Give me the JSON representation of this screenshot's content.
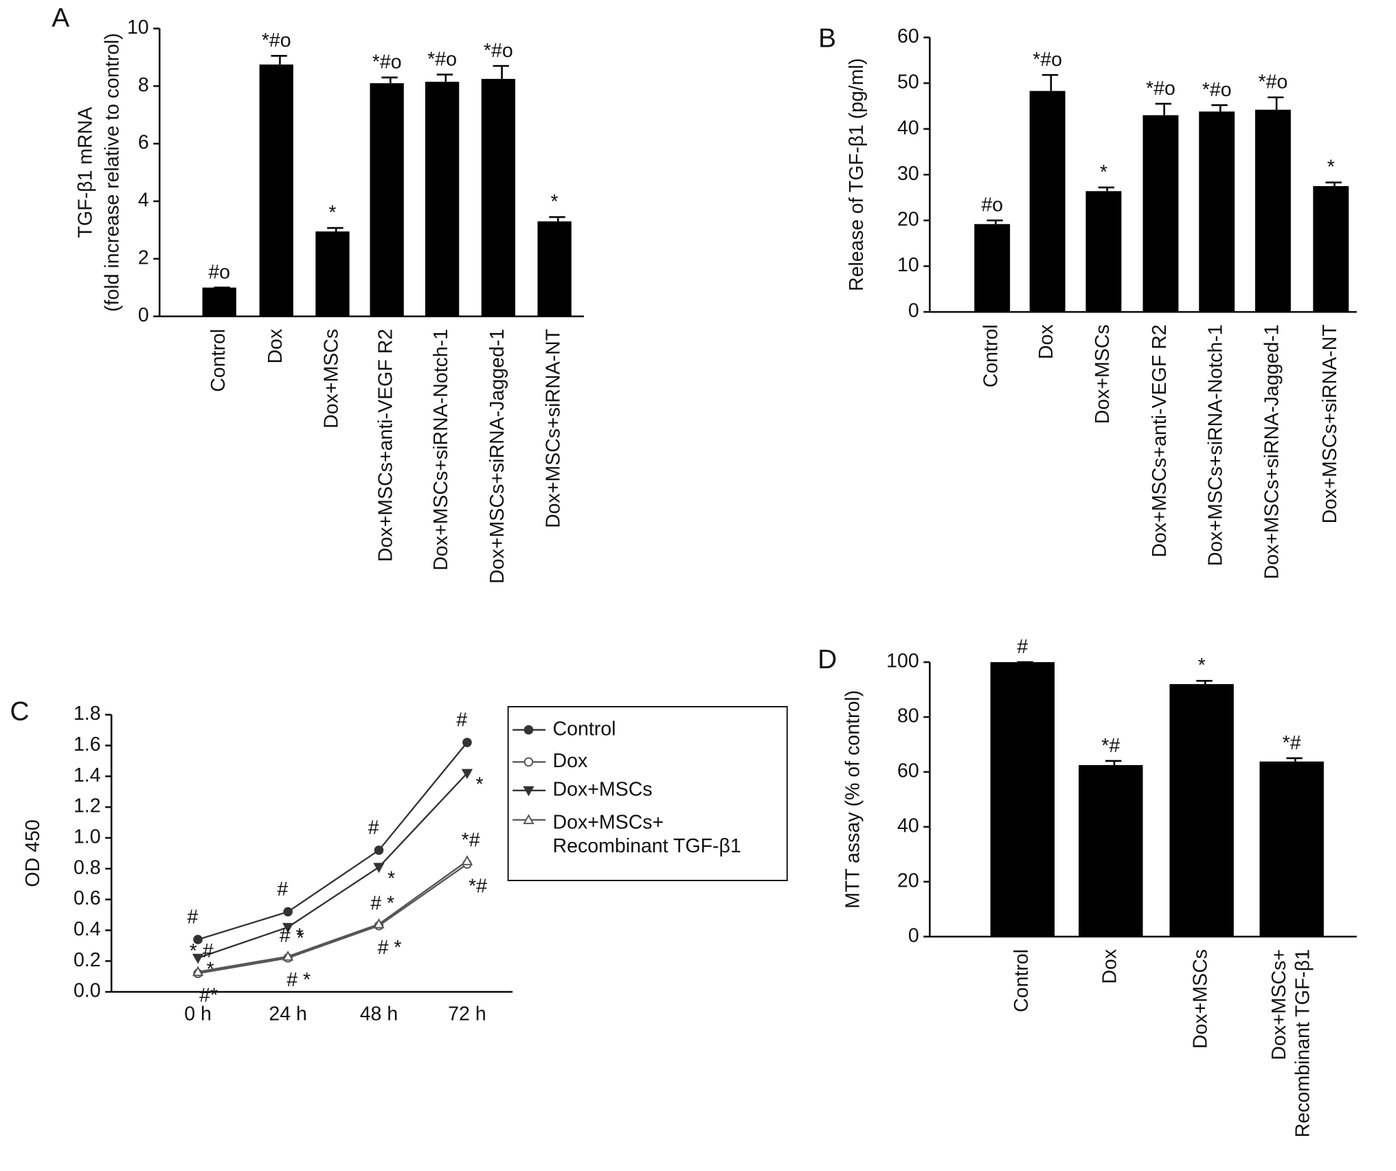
{
  "chart_data": [
    {
      "type": "bar",
      "panel_label": "A",
      "ylabel": [
        "TGF-β1 mRNA",
        "(fold increase relative to control)"
      ],
      "categories": [
        "Control",
        "Dox",
        "Dox+MSCs",
        "Dox+MSCs+anti-VEGF R2",
        "Dox+MSCs+siRNA-Notch-1",
        "Dox+MSCs+siRNA-Jagged-1",
        "Dox+MSCs+siRNA-NT"
      ],
      "values": [
        1,
        8.75,
        2.95,
        8.1,
        8.15,
        8.25,
        3.3
      ],
      "errors": [
        0,
        0.3,
        0.12,
        0.2,
        0.25,
        0.45,
        0.15
      ],
      "annotations": [
        "#o",
        "*#o",
        "*",
        "*#o",
        "*#o",
        "*#o",
        "*"
      ],
      "color": "#000000",
      "ylim": [
        0,
        10
      ],
      "yticks": [
        0,
        2,
        4,
        6,
        8,
        10
      ]
    },
    {
      "type": "bar",
      "panel_label": "B",
      "ylabel": [
        "Release of TGF-β1 (pg/ml)"
      ],
      "categories": [
        "Control",
        "Dox",
        "Dox+MSCs",
        "Dox+MSCs+anti-VEGF R2",
        "Dox+MSCs+siRNA-Notch-1",
        "Dox+MSCs+siRNA-Jagged-1",
        "Dox+MSCs+siRNA-NT"
      ],
      "values": [
        19.2,
        48.3,
        26.4,
        43,
        43.8,
        44.2,
        27.5
      ],
      "errors": [
        0.8,
        3.5,
        0.8,
        2.5,
        1.4,
        2.7,
        0.8
      ],
      "annotations": [
        "#o",
        "*#o",
        "*",
        "*#o",
        "*#o",
        "*#o",
        "*"
      ],
      "color": "#000000",
      "ylim": [
        0,
        60
      ],
      "yticks": [
        0,
        10,
        20,
        30,
        40,
        50,
        60
      ]
    },
    {
      "type": "line",
      "panel_label": "C",
      "ylabel": [
        "OD 450"
      ],
      "categories": [
        "0 h",
        "24 h",
        "48 h",
        "72 h"
      ],
      "series": [
        {
          "name": "Control",
          "color": "#333333",
          "marker": "circle-filled",
          "values": [
            0.34,
            0.52,
            0.92,
            1.62
          ],
          "annotations": [
            "#",
            "#",
            "#",
            "#"
          ]
        },
        {
          "name": "Dox",
          "color": "#555555",
          "marker": "circle-open",
          "values": [
            0.12,
            0.22,
            0.43,
            0.83
          ],
          "annotations": [
            "#*",
            "# *",
            "# *",
            "*#"
          ]
        },
        {
          "name": "Dox+MSCs",
          "color": "#333333",
          "marker": "triangle-down-filled",
          "values": [
            0.22,
            0.42,
            0.81,
            1.42
          ],
          "annotations": [
            "*",
            "*",
            "*",
            "*"
          ]
        },
        {
          "name": "Dox+MSCs+ Recombinant TGF-β1",
          "color": "#555555",
          "marker": "triangle-up-open",
          "values": [
            0.13,
            0.23,
            0.44,
            0.85
          ],
          "annotations": [
            "* #",
            "# *",
            "# *",
            "*#"
          ]
        }
      ],
      "ylim": [
        0,
        1.8
      ],
      "yticks": [
        {
          "value": 0,
          "label": "0.0"
        },
        0.2,
        0.4,
        0.6,
        0.8,
        {
          "value": 1,
          "label": "1.0"
        },
        1.2,
        1.4,
        1.6,
        1.8
      ]
    },
    {
      "type": "bar",
      "panel_label": "D",
      "ylabel": [
        "MTT assay (% of control)"
      ],
      "categories": [
        "Control",
        "Dox",
        "Dox+MSCs",
        "Dox+MSCs+ Recombinant TGF-β1"
      ],
      "values": [
        100,
        62.5,
        92,
        63.8
      ],
      "errors": [
        0,
        1.5,
        1.2,
        1.2
      ],
      "annotations": [
        "#",
        "*#",
        "*",
        "*#"
      ],
      "color": "#000000",
      "ylim": [
        0,
        100
      ],
      "yticks": [
        0,
        20,
        40,
        60,
        80,
        100
      ]
    }
  ]
}
